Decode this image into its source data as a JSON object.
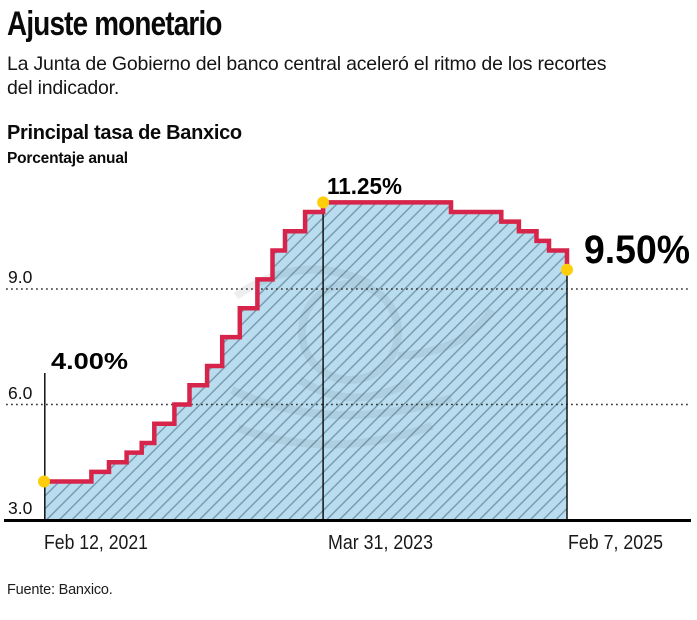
{
  "header": {
    "title": "Ajuste monetario",
    "dek_line1": "La Junta de Gobierno del banco central aceleró el ritmo de los recortes",
    "dek_line2": "del indicador."
  },
  "source": "Fuente: Banxico.",
  "colors": {
    "line": "#d6244a",
    "fill": "#b9dcee",
    "hatch": "#6e93aa",
    "dot": "#ffce0a",
    "grid": "#3a3a3a",
    "axis": "#000000"
  },
  "chart_data": {
    "type": "area",
    "step": true,
    "title": "Principal tasa de Banxico",
    "ylabel": "Porcentaje anual",
    "ylim": [
      3.0,
      11.6
    ],
    "grid": "dotted-horizontal",
    "legend": null,
    "yticks": [
      {
        "value": 3.0,
        "label": "3.0"
      },
      {
        "value": 6.0,
        "label": "6.0"
      },
      {
        "value": 9.0,
        "label": "9.0"
      }
    ],
    "xticks": [
      {
        "date": "2021-02-12",
        "label": "Feb 12, 2021"
      },
      {
        "date": "2023-03-31",
        "label": "Mar 31, 2023"
      },
      {
        "date": "2025-02-07",
        "label": "Feb 7, 2025"
      }
    ],
    "annotations": {
      "start": "4.00%",
      "peak": "11.25%",
      "end": "9.50%"
    },
    "points": [
      {
        "date": "2021-02-12",
        "rate": 4.0
      },
      {
        "date": "2021-06-24",
        "rate": 4.25
      },
      {
        "date": "2021-08-12",
        "rate": 4.5
      },
      {
        "date": "2021-09-30",
        "rate": 4.75
      },
      {
        "date": "2021-11-11",
        "rate": 5.0
      },
      {
        "date": "2021-12-16",
        "rate": 5.5
      },
      {
        "date": "2022-02-10",
        "rate": 6.0
      },
      {
        "date": "2022-03-24",
        "rate": 6.5
      },
      {
        "date": "2022-05-12",
        "rate": 7.0
      },
      {
        "date": "2022-06-23",
        "rate": 7.75
      },
      {
        "date": "2022-08-11",
        "rate": 8.5
      },
      {
        "date": "2022-09-29",
        "rate": 9.25
      },
      {
        "date": "2022-11-10",
        "rate": 10.0
      },
      {
        "date": "2022-12-15",
        "rate": 10.5
      },
      {
        "date": "2023-02-09",
        "rate": 11.0
      },
      {
        "date": "2023-03-31",
        "rate": 11.25
      },
      {
        "date": "2024-03-21",
        "rate": 11.0
      },
      {
        "date": "2024-08-08",
        "rate": 10.75
      },
      {
        "date": "2024-09-26",
        "rate": 10.5
      },
      {
        "date": "2024-11-14",
        "rate": 10.25
      },
      {
        "date": "2024-12-19",
        "rate": 10.0
      },
      {
        "date": "2025-02-07",
        "rate": 9.5
      }
    ]
  }
}
